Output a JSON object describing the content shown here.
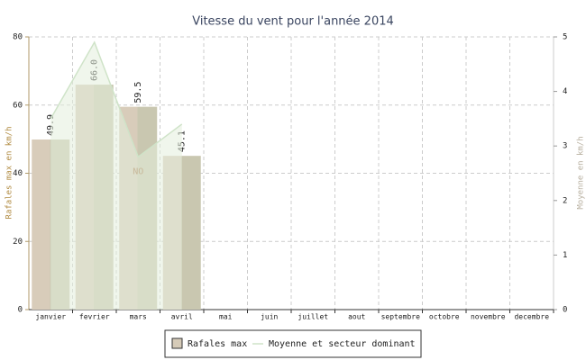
{
  "chart_data": {
    "type": "bar-line",
    "title": "Vitesse du vent pour l'année 2014",
    "categories": [
      "janvier",
      "fevrier",
      "mars",
      "avril",
      "mai",
      "juin",
      "juillet",
      "aout",
      "septembre",
      "octobre",
      "novembre",
      "decembre"
    ],
    "ylabel": "Rafales max en km/h",
    "y2label": "Moyenne en km/h",
    "ylim": [
      0,
      80
    ],
    "yticks": [
      0,
      20,
      40,
      60,
      80
    ],
    "y2lim": [
      0,
      5
    ],
    "y2ticks": [
      0,
      1,
      2,
      3,
      4,
      5
    ],
    "grid": true,
    "series": [
      {
        "name": "Rafales max",
        "type": "bar",
        "color": "#d6cbb8",
        "values": [
          49.9,
          66.0,
          59.5,
          45.1,
          null,
          null,
          null,
          null,
          null,
          null,
          null,
          null
        ],
        "value_labels": [
          "49.9",
          "66.0",
          "59.5",
          "45.1",
          null,
          null,
          null,
          null,
          null,
          null,
          null,
          null
        ]
      },
      {
        "name": "Moyenne et secteur dominant",
        "type": "line",
        "axis": "y2",
        "color": "#cfe3c8",
        "values": [
          3.5,
          4.9,
          2.8,
          3.4,
          null,
          null,
          null,
          null,
          null,
          null,
          null,
          null
        ],
        "sector_labels": [
          null,
          null,
          "NO",
          null,
          null,
          null,
          null,
          null,
          null,
          null,
          null,
          null
        ]
      }
    ]
  }
}
